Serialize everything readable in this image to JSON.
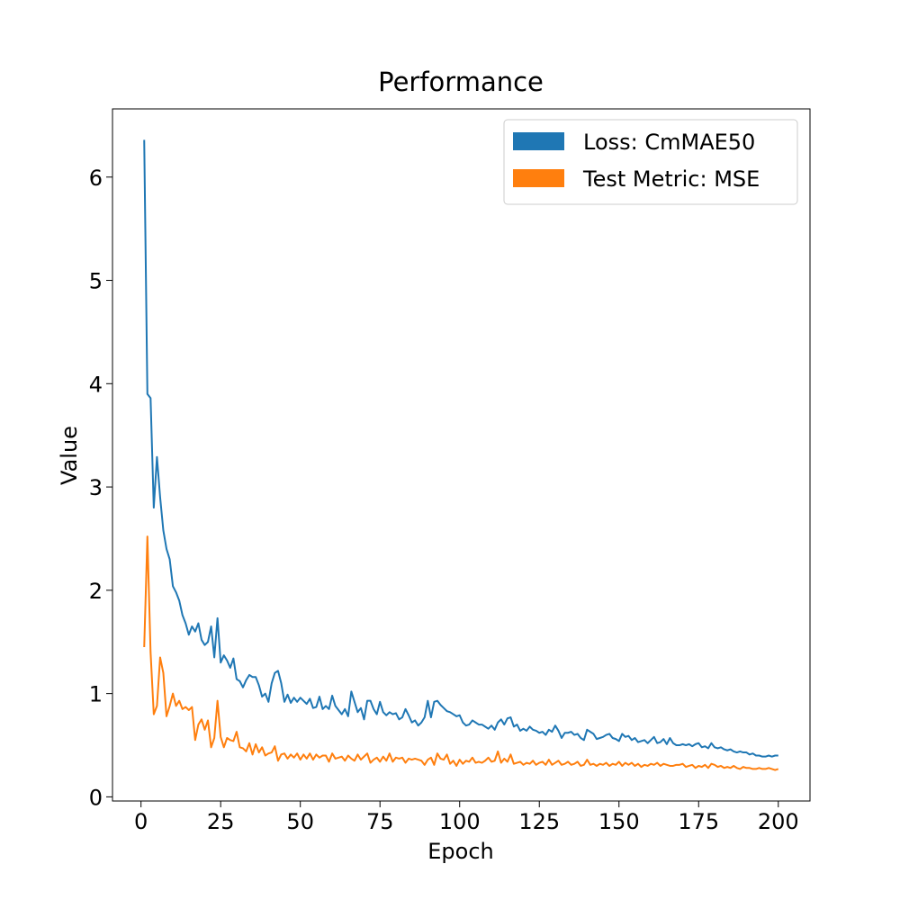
{
  "chart_data": {
    "type": "line",
    "title": "Performance",
    "x_label": "Epoch",
    "y_label": "Value",
    "x": [
      1,
      2,
      3,
      4,
      5,
      6,
      7,
      8,
      9,
      10,
      11,
      12,
      13,
      14,
      15,
      16,
      17,
      18,
      19,
      20,
      21,
      22,
      23,
      24,
      25,
      26,
      27,
      28,
      29,
      30,
      31,
      32,
      33,
      34,
      35,
      36,
      37,
      38,
      39,
      40,
      41,
      42,
      43,
      44,
      45,
      46,
      47,
      48,
      49,
      50,
      51,
      52,
      53,
      54,
      55,
      56,
      57,
      58,
      59,
      60,
      61,
      62,
      63,
      64,
      65,
      66,
      67,
      68,
      69,
      70,
      71,
      72,
      73,
      74,
      75,
      76,
      77,
      78,
      79,
      80,
      81,
      82,
      83,
      84,
      85,
      86,
      87,
      88,
      89,
      90,
      91,
      92,
      93,
      94,
      95,
      96,
      97,
      98,
      99,
      100,
      101,
      102,
      103,
      104,
      105,
      106,
      107,
      108,
      109,
      110,
      111,
      112,
      113,
      114,
      115,
      116,
      117,
      118,
      119,
      120,
      121,
      122,
      123,
      124,
      125,
      126,
      127,
      128,
      129,
      130,
      131,
      132,
      133,
      134,
      135,
      136,
      137,
      138,
      139,
      140,
      141,
      142,
      143,
      144,
      145,
      146,
      147,
      148,
      149,
      150,
      151,
      152,
      153,
      154,
      155,
      156,
      157,
      158,
      159,
      160,
      161,
      162,
      163,
      164,
      165,
      166,
      167,
      168,
      169,
      170,
      171,
      172,
      173,
      174,
      175,
      176,
      177,
      178,
      179,
      180,
      181,
      182,
      183,
      184,
      185,
      186,
      187,
      188,
      189,
      190,
      191,
      192,
      193,
      194,
      195,
      196,
      197,
      198,
      199,
      200
    ],
    "series": [
      {
        "name": "Loss: CmMAE50",
        "color": "#1f77b4",
        "values": [
          6.36,
          3.9,
          3.86,
          2.8,
          3.29,
          2.9,
          2.58,
          2.4,
          2.3,
          2.04,
          1.98,
          1.9,
          1.76,
          1.68,
          1.57,
          1.65,
          1.6,
          1.68,
          1.52,
          1.47,
          1.5,
          1.65,
          1.35,
          1.73,
          1.3,
          1.37,
          1.32,
          1.25,
          1.34,
          1.14,
          1.12,
          1.06,
          1.13,
          1.18,
          1.16,
          1.16,
          1.08,
          0.97,
          1.0,
          0.92,
          1.1,
          1.2,
          1.22,
          1.1,
          0.92,
          0.99,
          0.91,
          0.96,
          0.92,
          0.96,
          0.93,
          0.9,
          0.95,
          0.86,
          0.87,
          0.97,
          0.85,
          0.88,
          0.85,
          0.98,
          0.88,
          0.84,
          0.8,
          0.85,
          0.78,
          1.02,
          0.92,
          0.82,
          0.86,
          0.75,
          0.93,
          0.93,
          0.85,
          0.8,
          0.92,
          0.82,
          0.79,
          0.82,
          0.8,
          0.81,
          0.75,
          0.77,
          0.85,
          0.79,
          0.72,
          0.74,
          0.69,
          0.72,
          0.77,
          0.93,
          0.77,
          0.92,
          0.93,
          0.89,
          0.86,
          0.83,
          0.82,
          0.8,
          0.78,
          0.79,
          0.72,
          0.69,
          0.7,
          0.74,
          0.72,
          0.7,
          0.7,
          0.68,
          0.66,
          0.69,
          0.65,
          0.72,
          0.75,
          0.7,
          0.76,
          0.77,
          0.68,
          0.7,
          0.64,
          0.66,
          0.64,
          0.68,
          0.65,
          0.64,
          0.62,
          0.63,
          0.6,
          0.65,
          0.63,
          0.69,
          0.64,
          0.57,
          0.62,
          0.62,
          0.63,
          0.6,
          0.61,
          0.57,
          0.55,
          0.65,
          0.63,
          0.61,
          0.56,
          0.57,
          0.58,
          0.6,
          0.61,
          0.57,
          0.56,
          0.54,
          0.61,
          0.58,
          0.59,
          0.55,
          0.57,
          0.53,
          0.54,
          0.55,
          0.52,
          0.55,
          0.58,
          0.52,
          0.53,
          0.56,
          0.51,
          0.57,
          0.52,
          0.5,
          0.5,
          0.51,
          0.5,
          0.51,
          0.49,
          0.51,
          0.52,
          0.48,
          0.49,
          0.47,
          0.52,
          0.48,
          0.47,
          0.48,
          0.46,
          0.45,
          0.46,
          0.44,
          0.43,
          0.44,
          0.43,
          0.43,
          0.41,
          0.42,
          0.4,
          0.4,
          0.39,
          0.39,
          0.4,
          0.39,
          0.4,
          0.4
        ]
      },
      {
        "name": "Test Metric: MSE",
        "color": "#ff7f0e",
        "values": [
          1.45,
          2.52,
          1.4,
          0.8,
          0.88,
          1.35,
          1.2,
          0.78,
          0.88,
          1.0,
          0.88,
          0.93,
          0.85,
          0.87,
          0.84,
          0.87,
          0.55,
          0.7,
          0.75,
          0.65,
          0.74,
          0.48,
          0.57,
          0.93,
          0.58,
          0.48,
          0.57,
          0.55,
          0.54,
          0.63,
          0.48,
          0.47,
          0.44,
          0.52,
          0.41,
          0.51,
          0.43,
          0.48,
          0.4,
          0.42,
          0.43,
          0.49,
          0.35,
          0.41,
          0.42,
          0.37,
          0.41,
          0.38,
          0.42,
          0.36,
          0.41,
          0.37,
          0.42,
          0.36,
          0.41,
          0.38,
          0.4,
          0.4,
          0.34,
          0.42,
          0.37,
          0.38,
          0.39,
          0.35,
          0.4,
          0.37,
          0.35,
          0.41,
          0.36,
          0.39,
          0.42,
          0.33,
          0.36,
          0.38,
          0.34,
          0.39,
          0.35,
          0.42,
          0.34,
          0.38,
          0.37,
          0.38,
          0.33,
          0.37,
          0.36,
          0.37,
          0.36,
          0.35,
          0.31,
          0.36,
          0.38,
          0.31,
          0.42,
          0.37,
          0.36,
          0.41,
          0.32,
          0.35,
          0.3,
          0.36,
          0.32,
          0.35,
          0.34,
          0.38,
          0.33,
          0.34,
          0.33,
          0.35,
          0.38,
          0.34,
          0.35,
          0.44,
          0.33,
          0.37,
          0.34,
          0.41,
          0.32,
          0.33,
          0.34,
          0.31,
          0.33,
          0.32,
          0.35,
          0.31,
          0.33,
          0.34,
          0.31,
          0.36,
          0.31,
          0.33,
          0.35,
          0.31,
          0.32,
          0.34,
          0.31,
          0.32,
          0.34,
          0.3,
          0.31,
          0.36,
          0.31,
          0.32,
          0.3,
          0.32,
          0.31,
          0.33,
          0.3,
          0.32,
          0.31,
          0.34,
          0.3,
          0.33,
          0.31,
          0.33,
          0.3,
          0.32,
          0.29,
          0.31,
          0.3,
          0.32,
          0.31,
          0.33,
          0.3,
          0.32,
          0.31,
          0.3,
          0.3,
          0.31,
          0.31,
          0.32,
          0.29,
          0.3,
          0.31,
          0.28,
          0.3,
          0.29,
          0.31,
          0.28,
          0.32,
          0.31,
          0.29,
          0.3,
          0.28,
          0.29,
          0.28,
          0.3,
          0.28,
          0.27,
          0.29,
          0.28,
          0.28,
          0.27,
          0.27,
          0.28,
          0.27,
          0.27,
          0.28,
          0.27,
          0.26,
          0.27
        ]
      }
    ],
    "xlim": [
      -8.95,
      209.95
    ],
    "ylim": [
      -0.04,
      6.66
    ],
    "xticks": [
      0,
      25,
      50,
      75,
      100,
      125,
      150,
      175,
      200
    ],
    "yticks": [
      0,
      1,
      2,
      3,
      4,
      5,
      6
    ],
    "grid": false,
    "legend": "upper right"
  }
}
